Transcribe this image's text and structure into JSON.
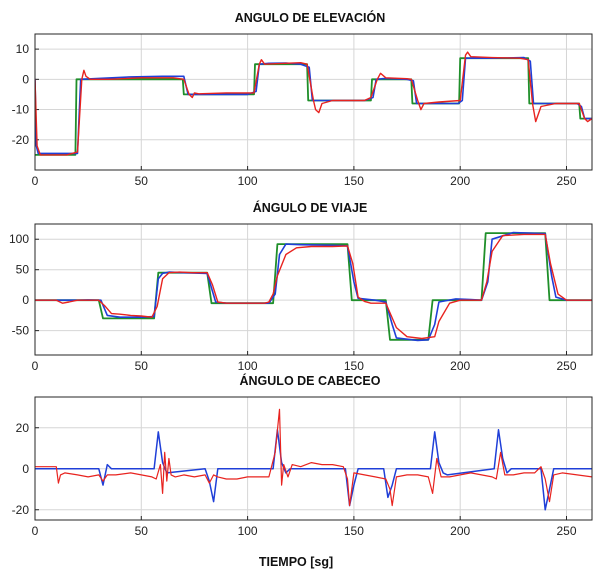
{
  "figure": {
    "xlabel": "TIEMPO [sg]"
  },
  "chart_data": [
    {
      "type": "line",
      "title": "ANGULO DE ELEVACIÓN",
      "xlim": [
        0,
        262
      ],
      "ylim": [
        -30,
        15
      ],
      "xticks": [
        0,
        50,
        100,
        150,
        200,
        250
      ],
      "yticks": [
        -20,
        -10,
        0,
        10
      ],
      "grid": true,
      "series": [
        {
          "color": "#1f8f2a",
          "width": 1.8,
          "x": [
            0,
            19,
            19.5,
            69.5,
            70,
            103,
            103.5,
            128,
            128.5,
            158,
            158.5,
            177,
            177.5,
            199.5,
            200,
            232,
            232.5,
            256,
            256.5,
            262
          ],
          "y": [
            -25,
            -25,
            0,
            0,
            -5,
            -5,
            5,
            5,
            -7,
            -7,
            0,
            0,
            -8,
            -8,
            7,
            7,
            -8,
            -8,
            -13,
            -13
          ]
        },
        {
          "color": "#1f3fd8",
          "width": 1.6,
          "x": [
            0,
            0.6,
            1.5,
            20,
            21.5,
            30,
            45,
            60,
            70,
            72,
            85,
            100,
            104,
            105.5,
            110,
            118,
            125,
            129,
            130.5,
            140,
            155,
            159,
            160.5,
            165,
            175,
            178,
            179.5,
            190,
            199,
            201,
            202.5,
            215,
            230,
            233,
            234.5,
            245,
            255,
            257,
            258.5,
            262
          ],
          "y": [
            0,
            -22,
            -24.5,
            -24.5,
            0,
            0.3,
            0.8,
            1,
            1,
            -5,
            -5,
            -5,
            -4,
            5,
            5.3,
            5.4,
            5,
            4,
            -7,
            -7,
            -7,
            -6,
            0,
            0.3,
            0,
            -0.5,
            -8,
            -8,
            -8,
            -7,
            7,
            7,
            7.2,
            6,
            -8,
            -8,
            -8,
            -9,
            -13,
            -13
          ]
        },
        {
          "color": "#e8231f",
          "width": 1.4,
          "x": [
            0,
            1,
            2.5,
            15,
            20,
            22,
            23,
            24,
            26,
            35,
            50,
            65,
            70,
            72.5,
            74,
            75,
            77,
            90,
            103,
            105.5,
            106.5,
            108,
            115,
            125,
            128,
            131,
            132,
            133.5,
            135,
            140,
            155,
            158,
            161,
            162.5,
            165,
            175,
            177,
            180,
            181.5,
            183,
            190,
            200,
            202.5,
            203.5,
            205,
            215,
            228,
            232,
            234,
            235.5,
            238,
            245,
            256,
            258.5,
            260,
            262
          ],
          "y": [
            0,
            -22,
            -25,
            -25,
            -24,
            0,
            3,
            1,
            0,
            0,
            0.5,
            0.5,
            0,
            -5,
            -6,
            -4.5,
            -4.8,
            -4.5,
            -4.5,
            5,
            6.5,
            5,
            5.2,
            5.5,
            5,
            -7,
            -10,
            -11,
            -8,
            -7,
            -7,
            -6,
            0,
            2,
            0.5,
            0.2,
            0,
            -7,
            -10,
            -8,
            -7.5,
            -7,
            8,
            9,
            7.5,
            7.2,
            7,
            6.5,
            -8,
            -14,
            -9,
            -8,
            -8,
            -13,
            -14,
            -13
          ]
        }
      ]
    },
    {
      "type": "line",
      "title": "ÁNGULO DE VIAJE",
      "xlim": [
        0,
        262
      ],
      "ylim": [
        -90,
        125
      ],
      "xticks": [
        0,
        50,
        100,
        150,
        200,
        250
      ],
      "yticks": [
        -50,
        0,
        50,
        100
      ],
      "grid": true,
      "series": [
        {
          "color": "#1f8f2a",
          "width": 1.8,
          "x": [
            0,
            30,
            32,
            56,
            58,
            81,
            83,
            112,
            114,
            147,
            149,
            165,
            167,
            185,
            187,
            210,
            212,
            240,
            242,
            262
          ],
          "y": [
            0,
            0,
            -30,
            -30,
            45,
            45,
            -5,
            -5,
            92,
            92,
            0,
            0,
            -65,
            -65,
            0,
            0,
            110,
            110,
            0,
            0
          ]
        },
        {
          "color": "#1f3fd8",
          "width": 1.6,
          "x": [
            0,
            15,
            20,
            25,
            31,
            34,
            40,
            50,
            56,
            58,
            60,
            63,
            70,
            81,
            83,
            85,
            90,
            100,
            110,
            113,
            115,
            118,
            125,
            140,
            147,
            150,
            152,
            160,
            165,
            168,
            170,
            180,
            185,
            188,
            190,
            198,
            205,
            210,
            213,
            215,
            225,
            240,
            243,
            245,
            250,
            262
          ],
          "y": [
            0,
            0,
            0,
            0.5,
            0,
            -25,
            -28,
            -28,
            -27,
            35,
            44,
            46,
            45,
            44,
            20,
            -3,
            -5,
            -5,
            -5,
            10,
            75,
            92,
            91,
            90,
            89,
            30,
            3,
            0,
            -3,
            -40,
            -62,
            -66,
            -65,
            -40,
            -3,
            2,
            1,
            0,
            30,
            100,
            111,
            109,
            40,
            5,
            0,
            0
          ]
        },
        {
          "color": "#e8231f",
          "width": 1.4,
          "x": [
            0,
            10,
            13,
            16,
            20,
            25,
            30,
            33,
            36,
            40,
            45,
            50,
            55,
            57.5,
            60,
            63,
            68,
            74,
            81,
            83.5,
            86,
            90,
            95,
            100,
            108,
            110,
            112,
            114,
            118,
            123,
            130,
            140,
            147,
            149.5,
            152,
            155,
            158,
            162,
            165,
            167.5,
            170,
            175,
            182,
            188,
            190,
            195,
            200,
            210,
            212.5,
            215,
            220,
            230,
            240,
            242.5,
            246,
            250,
            262
          ],
          "y": [
            0,
            0,
            -5,
            -3,
            0,
            0,
            0,
            -10,
            -22,
            -23,
            -25,
            -26,
            -28,
            -10,
            35,
            45,
            46,
            45,
            45,
            25,
            -3,
            -5,
            -5,
            -5,
            -5,
            -3,
            10,
            40,
            75,
            86,
            88,
            88,
            89,
            60,
            5,
            -2,
            -5,
            -5,
            -5,
            -25,
            -45,
            -60,
            -63,
            -60,
            -35,
            -5,
            0,
            0,
            30,
            80,
            106,
            108,
            108,
            60,
            10,
            0,
            0
          ]
        }
      ]
    },
    {
      "type": "line",
      "title": "ÁNGULO DE CABECEO",
      "xlim": [
        0,
        262
      ],
      "ylim": [
        -25,
        35
      ],
      "xticks": [
        0,
        50,
        100,
        150,
        200,
        250
      ],
      "yticks": [
        -20,
        0,
        20
      ],
      "grid": true,
      "series": [
        {
          "color": "#1f3fd8",
          "width": 1.5,
          "x": [
            0,
            30,
            32,
            34,
            36,
            38,
            56,
            58,
            60,
            62,
            80,
            82,
            84,
            86,
            112,
            114,
            116,
            118,
            120,
            146,
            148,
            150,
            152,
            164,
            166,
            168,
            170,
            186,
            188,
            190,
            192,
            194,
            216,
            218,
            220,
            222,
            224,
            238,
            240,
            242,
            244,
            262
          ],
          "y": [
            0,
            0,
            -8,
            2,
            0,
            0,
            0,
            18,
            3,
            -2,
            0,
            -6,
            -16,
            0,
            0,
            19,
            3,
            -2,
            0,
            0,
            -18,
            -8,
            0,
            0,
            -14,
            -8,
            0,
            0,
            18,
            3,
            -2,
            -3,
            0,
            19,
            5,
            -2,
            0,
            0,
            -20,
            -10,
            0,
            0
          ]
        },
        {
          "color": "#e8231f",
          "width": 1.2,
          "x": [
            0,
            10,
            11,
            12,
            14,
            20,
            25,
            30,
            32,
            34,
            38,
            45,
            50,
            55,
            57,
            59,
            60,
            61,
            62,
            63,
            64,
            66,
            70,
            75,
            80,
            82,
            84,
            86,
            90,
            95,
            100,
            105,
            110,
            113,
            115,
            116,
            117,
            119,
            121,
            125,
            130,
            135,
            140,
            145,
            147,
            148,
            150,
            155,
            160,
            165,
            167,
            168,
            170,
            175,
            180,
            185,
            187,
            189,
            191,
            195,
            200,
            205,
            210,
            215,
            217,
            219,
            221,
            225,
            230,
            235,
            238,
            240,
            242,
            244,
            248,
            255,
            262
          ],
          "y": [
            1,
            1,
            -7,
            -3,
            -2,
            -3,
            -4,
            -3,
            -6,
            -3,
            -3,
            -2,
            -3,
            -4,
            -5,
            2,
            -12,
            8,
            -6,
            5,
            -3,
            -4,
            -3,
            -4,
            -3,
            -7,
            -3,
            -4,
            -5,
            -5,
            -4,
            -4,
            -4,
            8,
            29,
            -8,
            2,
            -4,
            2,
            1,
            3,
            2,
            2,
            1,
            -5,
            -18,
            -2,
            -3,
            -4,
            -5,
            -10,
            -18,
            -4,
            -3,
            -3,
            -4,
            -12,
            5,
            -4,
            -4,
            -3,
            -2,
            -3,
            -4,
            -5,
            8,
            -3,
            -3,
            -2,
            -2,
            1,
            -5,
            -16,
            -3,
            -2,
            -3,
            -4
          ]
        }
      ]
    }
  ]
}
